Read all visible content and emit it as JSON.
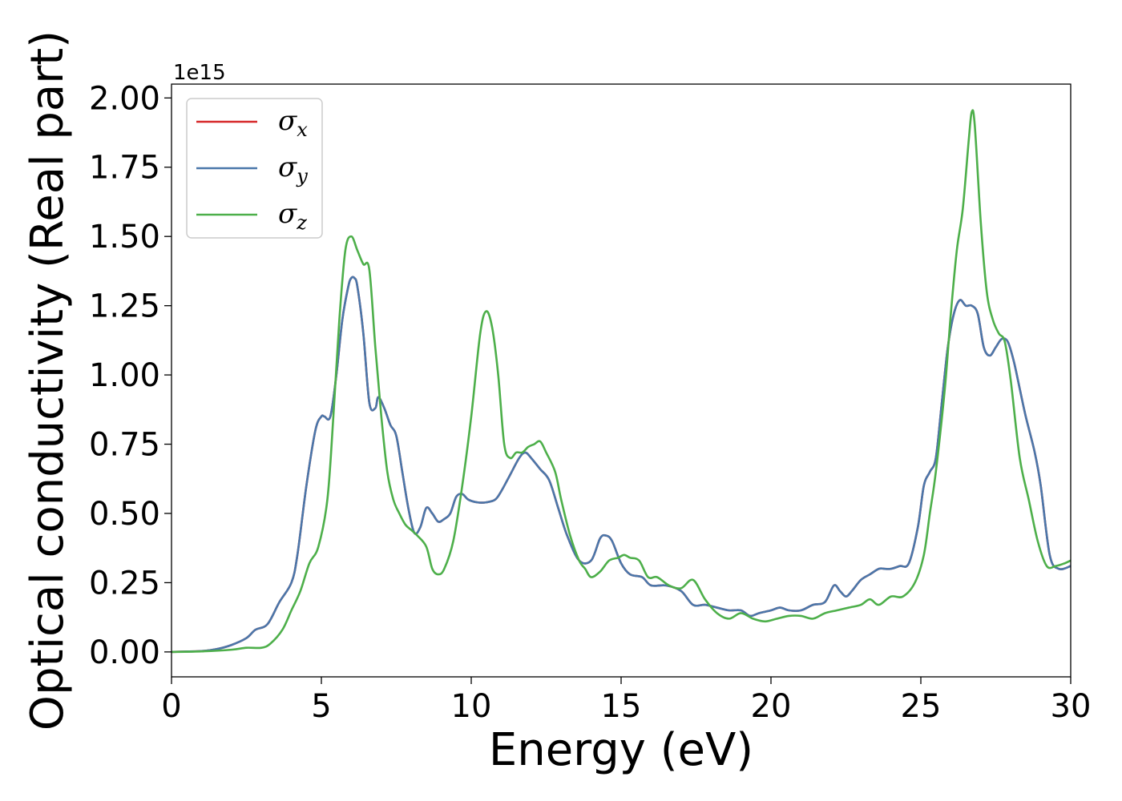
{
  "chart_data": {
    "type": "line",
    "xlabel": "Energy (eV)",
    "ylabel": "Optical conductivity (Real part)",
    "y_offset_label": "1e15",
    "xlim": [
      0,
      30
    ],
    "ylim": [
      -0.09,
      2.05
    ],
    "xticks": [
      0,
      5,
      10,
      15,
      20,
      25,
      30
    ],
    "xtick_labels": [
      "0",
      "5",
      "10",
      "15",
      "20",
      "25",
      "30"
    ],
    "yticks": [
      0.0,
      0.25,
      0.5,
      0.75,
      1.0,
      1.25,
      1.5,
      1.75,
      2.0
    ],
    "ytick_labels": [
      "0.00",
      "0.25",
      "0.50",
      "0.75",
      "1.00",
      "1.25",
      "1.50",
      "1.75",
      "2.00"
    ],
    "grid": false,
    "legend_position": "top-left",
    "series": [
      {
        "name": "σx",
        "symbol": "σ",
        "subscript": "x",
        "color": "#d62728",
        "x": [
          0,
          1,
          1.5,
          2,
          2.5,
          2.8,
          3.2,
          3.6,
          4.0,
          4.2,
          4.5,
          4.8,
          5.0,
          5.1,
          5.3,
          5.5,
          5.7,
          5.9,
          6.0,
          6.1,
          6.2,
          6.4,
          6.6,
          6.8,
          6.9,
          7.1,
          7.3,
          7.5,
          7.7,
          7.9,
          8.1,
          8.3,
          8.5,
          8.7,
          8.9,
          9.1,
          9.3,
          9.5,
          9.7,
          9.9,
          10.2,
          10.5,
          10.8,
          11.0,
          11.3,
          11.6,
          11.8,
          12.0,
          12.3,
          12.6,
          12.9,
          13.2,
          13.6,
          14.0,
          14.3,
          14.5,
          14.7,
          15.0,
          15.3,
          15.7,
          16.0,
          16.5,
          17.0,
          17.4,
          17.8,
          18.2,
          18.6,
          19.0,
          19.3,
          19.6,
          20.0,
          20.3,
          20.6,
          21.0,
          21.4,
          21.8,
          22.1,
          22.3,
          22.5,
          22.7,
          23.0,
          23.3,
          23.6,
          23.8,
          24.0,
          24.3,
          24.6,
          24.9,
          25.1,
          25.3,
          25.5,
          25.7,
          25.9,
          26.1,
          26.3,
          26.5,
          26.7,
          26.9,
          27.1,
          27.3,
          27.5,
          27.7,
          27.9,
          28.1,
          28.3,
          28.5,
          28.8,
          29.0,
          29.3,
          29.6,
          30.0
        ],
        "y": [
          0,
          0.003,
          0.01,
          0.025,
          0.05,
          0.08,
          0.1,
          0.18,
          0.25,
          0.35,
          0.6,
          0.8,
          0.85,
          0.85,
          0.85,
          1.0,
          1.2,
          1.32,
          1.35,
          1.35,
          1.32,
          1.15,
          0.9,
          0.88,
          0.92,
          0.88,
          0.82,
          0.78,
          0.65,
          0.52,
          0.43,
          0.45,
          0.52,
          0.5,
          0.47,
          0.48,
          0.5,
          0.56,
          0.57,
          0.55,
          0.54,
          0.54,
          0.55,
          0.58,
          0.64,
          0.7,
          0.72,
          0.7,
          0.66,
          0.62,
          0.52,
          0.42,
          0.33,
          0.33,
          0.41,
          0.42,
          0.4,
          0.32,
          0.28,
          0.27,
          0.24,
          0.24,
          0.22,
          0.17,
          0.17,
          0.16,
          0.15,
          0.15,
          0.13,
          0.14,
          0.15,
          0.16,
          0.15,
          0.15,
          0.17,
          0.18,
          0.24,
          0.22,
          0.2,
          0.22,
          0.26,
          0.28,
          0.3,
          0.3,
          0.3,
          0.31,
          0.32,
          0.45,
          0.6,
          0.65,
          0.7,
          0.9,
          1.1,
          1.22,
          1.27,
          1.25,
          1.25,
          1.22,
          1.1,
          1.07,
          1.1,
          1.13,
          1.12,
          1.05,
          0.95,
          0.85,
          0.72,
          0.6,
          0.35,
          0.3,
          0.31
        ]
      },
      {
        "name": "σy",
        "symbol": "σ",
        "subscript": "y",
        "color": "#4a77aa",
        "x": [
          0,
          1,
          1.5,
          2,
          2.5,
          2.8,
          3.2,
          3.6,
          4.0,
          4.2,
          4.5,
          4.8,
          5.0,
          5.1,
          5.3,
          5.5,
          5.7,
          5.9,
          6.0,
          6.1,
          6.2,
          6.4,
          6.6,
          6.8,
          6.9,
          7.1,
          7.3,
          7.5,
          7.7,
          7.9,
          8.1,
          8.3,
          8.5,
          8.7,
          8.9,
          9.1,
          9.3,
          9.5,
          9.7,
          9.9,
          10.2,
          10.5,
          10.8,
          11.0,
          11.3,
          11.6,
          11.8,
          12.0,
          12.3,
          12.6,
          12.9,
          13.2,
          13.6,
          14.0,
          14.3,
          14.5,
          14.7,
          15.0,
          15.3,
          15.7,
          16.0,
          16.5,
          17.0,
          17.4,
          17.8,
          18.2,
          18.6,
          19.0,
          19.3,
          19.6,
          20.0,
          20.3,
          20.6,
          21.0,
          21.4,
          21.8,
          22.1,
          22.3,
          22.5,
          22.7,
          23.0,
          23.3,
          23.6,
          23.8,
          24.0,
          24.3,
          24.6,
          24.9,
          25.1,
          25.3,
          25.5,
          25.7,
          25.9,
          26.1,
          26.3,
          26.5,
          26.7,
          26.9,
          27.1,
          27.3,
          27.5,
          27.7,
          27.9,
          28.1,
          28.3,
          28.5,
          28.8,
          29.0,
          29.3,
          29.6,
          30.0
        ],
        "y": [
          0,
          0.003,
          0.01,
          0.025,
          0.05,
          0.08,
          0.1,
          0.18,
          0.25,
          0.35,
          0.6,
          0.8,
          0.85,
          0.85,
          0.85,
          1.0,
          1.2,
          1.32,
          1.35,
          1.35,
          1.32,
          1.15,
          0.9,
          0.88,
          0.92,
          0.88,
          0.82,
          0.78,
          0.65,
          0.52,
          0.43,
          0.45,
          0.52,
          0.5,
          0.47,
          0.48,
          0.5,
          0.56,
          0.57,
          0.55,
          0.54,
          0.54,
          0.55,
          0.58,
          0.64,
          0.7,
          0.72,
          0.7,
          0.66,
          0.62,
          0.52,
          0.42,
          0.33,
          0.33,
          0.41,
          0.42,
          0.4,
          0.32,
          0.28,
          0.27,
          0.24,
          0.24,
          0.22,
          0.17,
          0.17,
          0.16,
          0.15,
          0.15,
          0.13,
          0.14,
          0.15,
          0.16,
          0.15,
          0.15,
          0.17,
          0.18,
          0.24,
          0.22,
          0.2,
          0.22,
          0.26,
          0.28,
          0.3,
          0.3,
          0.3,
          0.31,
          0.32,
          0.45,
          0.6,
          0.65,
          0.7,
          0.9,
          1.1,
          1.22,
          1.27,
          1.25,
          1.25,
          1.22,
          1.1,
          1.07,
          1.1,
          1.13,
          1.12,
          1.05,
          0.95,
          0.85,
          0.72,
          0.6,
          0.35,
          0.3,
          0.31
        ]
      },
      {
        "name": "σz",
        "symbol": "σ",
        "subscript": "z",
        "color": "#4daf4a",
        "x": [
          0,
          1,
          2,
          2.5,
          3,
          3.3,
          3.7,
          4.0,
          4.3,
          4.6,
          4.9,
          5.2,
          5.4,
          5.6,
          5.8,
          6.0,
          6.2,
          6.4,
          6.6,
          6.8,
          7.0,
          7.2,
          7.4,
          7.6,
          7.8,
          8.0,
          8.2,
          8.5,
          8.7,
          8.9,
          9.1,
          9.4,
          9.7,
          10.0,
          10.3,
          10.5,
          10.7,
          10.9,
          11.1,
          11.3,
          11.5,
          11.7,
          11.9,
          12.1,
          12.3,
          12.5,
          12.8,
          13.0,
          13.3,
          13.6,
          13.8,
          14.0,
          14.3,
          14.6,
          14.9,
          15.1,
          15.3,
          15.6,
          15.9,
          16.2,
          16.6,
          17.0,
          17.4,
          17.8,
          18.2,
          18.6,
          19.0,
          19.4,
          19.8,
          20.2,
          20.6,
          21.0,
          21.4,
          21.8,
          22.2,
          22.6,
          23.0,
          23.3,
          23.6,
          24.0,
          24.4,
          24.8,
          25.1,
          25.3,
          25.5,
          25.8,
          26.0,
          26.2,
          26.4,
          26.6,
          26.7,
          26.8,
          27.0,
          27.2,
          27.4,
          27.6,
          27.8,
          28.0,
          28.3,
          28.6,
          28.9,
          29.2,
          29.5,
          29.8,
          30.0
        ],
        "y": [
          0,
          0.002,
          0.008,
          0.015,
          0.015,
          0.03,
          0.08,
          0.15,
          0.22,
          0.32,
          0.38,
          0.55,
          0.85,
          1.2,
          1.45,
          1.5,
          1.45,
          1.4,
          1.38,
          1.1,
          0.85,
          0.65,
          0.55,
          0.5,
          0.46,
          0.44,
          0.42,
          0.38,
          0.3,
          0.28,
          0.3,
          0.4,
          0.6,
          0.85,
          1.15,
          1.23,
          1.17,
          1.0,
          0.75,
          0.7,
          0.72,
          0.72,
          0.74,
          0.75,
          0.76,
          0.72,
          0.65,
          0.55,
          0.42,
          0.33,
          0.3,
          0.27,
          0.29,
          0.33,
          0.34,
          0.35,
          0.34,
          0.33,
          0.27,
          0.27,
          0.24,
          0.23,
          0.26,
          0.19,
          0.14,
          0.12,
          0.14,
          0.12,
          0.11,
          0.12,
          0.13,
          0.13,
          0.12,
          0.14,
          0.15,
          0.16,
          0.17,
          0.19,
          0.17,
          0.2,
          0.2,
          0.25,
          0.35,
          0.5,
          0.65,
          0.95,
          1.22,
          1.45,
          1.6,
          1.85,
          1.95,
          1.9,
          1.55,
          1.3,
          1.2,
          1.15,
          1.12,
          0.98,
          0.7,
          0.55,
          0.4,
          0.31,
          0.31,
          0.32,
          0.33
        ]
      }
    ]
  }
}
